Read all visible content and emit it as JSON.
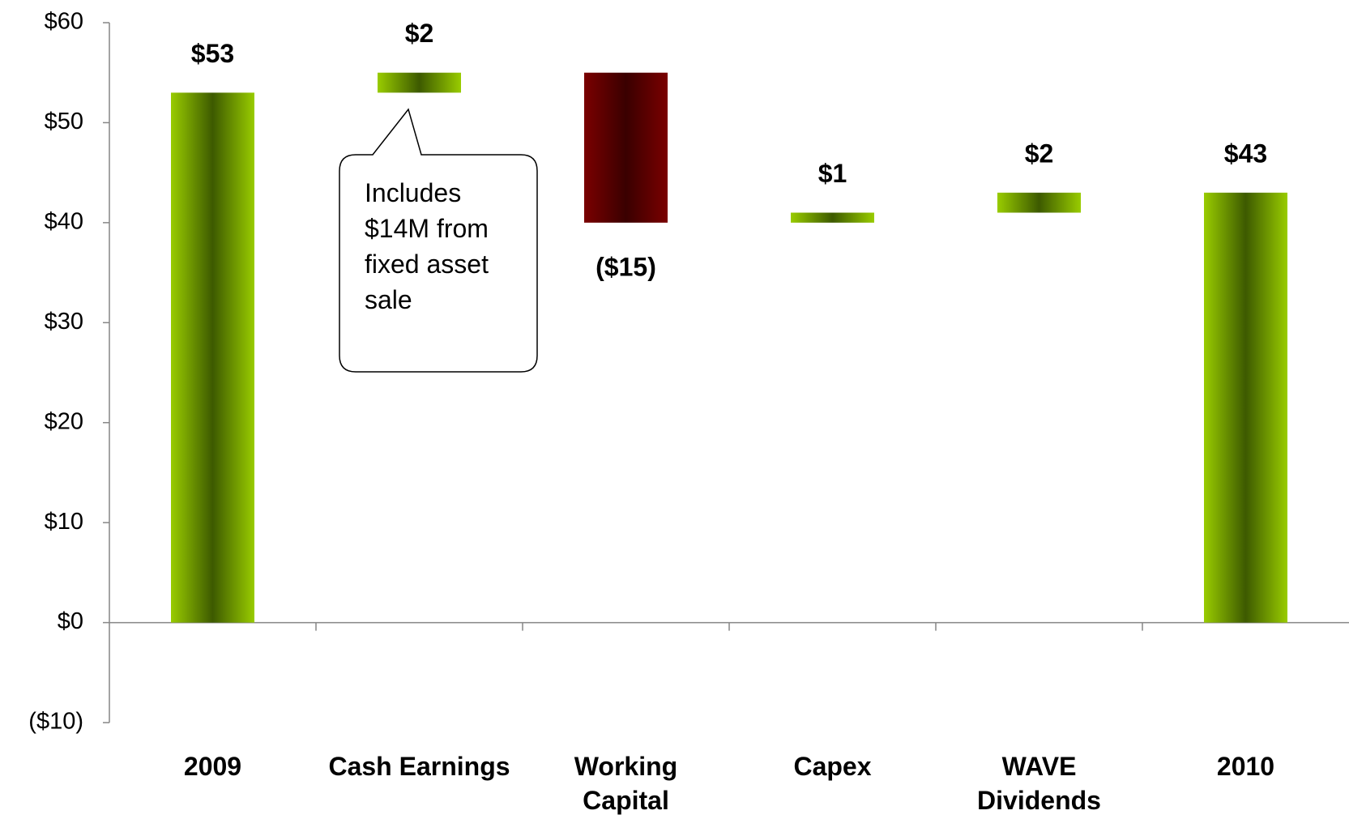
{
  "chart_data": {
    "type": "waterfall",
    "categories": [
      "2009",
      "Cash Earnings",
      "Working Capital",
      "Capex",
      "WAVE Dividends",
      "2010"
    ],
    "values": [
      53,
      2,
      -15,
      1,
      2,
      43
    ],
    "value_labels": [
      "$53",
      "$2",
      "($15)",
      "$1",
      "$2",
      "$43"
    ],
    "totals": [
      true,
      false,
      false,
      false,
      false,
      true
    ],
    "colors": {
      "increase": "#99cc00",
      "decrease": "#7a0000",
      "total": "#99cc00"
    },
    "ylim": [
      -10,
      60
    ],
    "yticks": [
      {
        "value": -10,
        "label": "($10)"
      },
      {
        "value": 0,
        "label": "$0"
      },
      {
        "value": 10,
        "label": "$10"
      },
      {
        "value": 20,
        "label": "$20"
      },
      {
        "value": 30,
        "label": "$30"
      },
      {
        "value": 40,
        "label": "$40"
      },
      {
        "value": 50,
        "label": "$50"
      },
      {
        "value": 60,
        "label": "$60"
      }
    ],
    "annotations": [
      "Includes $14M from fixed asset sale"
    ],
    "grid": false
  }
}
